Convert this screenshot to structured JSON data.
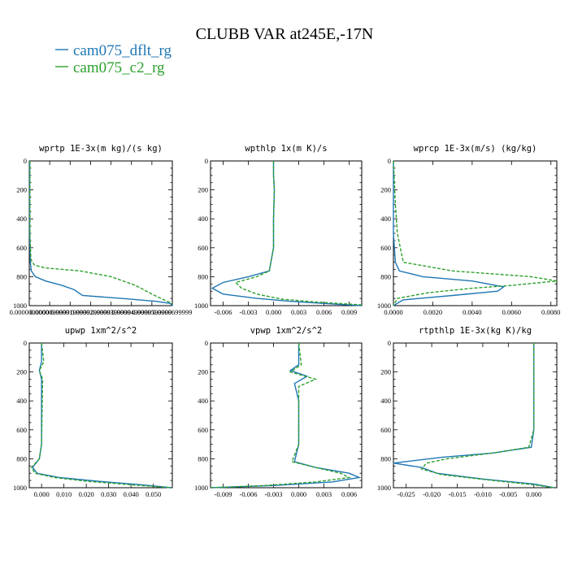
{
  "title": "CLUBB VAR at245E,-17N",
  "legend": [
    {
      "label": "cam075_dflt_rg",
      "color": "#1f77b4",
      "style": "solid"
    },
    {
      "label": "cam075_c2_rg",
      "color": "#2ca02c",
      "style": "dashed"
    }
  ],
  "chart_data": [
    {
      "type": "line",
      "title": "wprtp  1E-3x(m kg)/(s kg)",
      "ylim": [
        1000,
        0
      ],
      "yticks": [
        0,
        200,
        400,
        600,
        800,
        1000
      ],
      "xlim": [
        0,
        7e-05
      ],
      "xtick_labels": [
        "0.0000000000",
        "0.0000099999",
        "0.0000199999",
        "0.0000299999",
        "0.0000399999",
        "0.0000499999",
        "0.0000599999",
        "0.0000699999"
      ],
      "xtick_values": [
        0,
        1e-05,
        2e-05,
        3e-05,
        4e-05,
        5e-05,
        6e-05,
        7e-05
      ],
      "series": [
        {
          "name": "cam075_dflt_rg",
          "x": [
            2e-07,
            2e-07,
            5e-07,
            1e-06,
            3e-06,
            8e-06,
            1.6e-05,
            2.2e-05,
            2.6e-05,
            4.5e-05,
            6.2e-05,
            6.9e-05,
            7e-05
          ],
          "y": [
            0,
            500,
            700,
            760,
            800,
            830,
            860,
            890,
            930,
            950,
            970,
            985,
            1000
          ]
        },
        {
          "name": "cam075_c2_rg",
          "x": [
            3e-07,
            3e-07,
            8e-07,
            2.5e-06,
            8e-06,
            2.5e-05,
            4e-05,
            5.2e-05,
            6e-05,
            6.6e-05,
            7e-05
          ],
          "y": [
            0,
            500,
            680,
            720,
            740,
            760,
            800,
            860,
            920,
            960,
            985
          ]
        }
      ]
    },
    {
      "type": "line",
      "title": "wpthlp  1x(m K)/s",
      "ylim": [
        1000,
        0
      ],
      "yticks": [
        0,
        200,
        400,
        600,
        800,
        1000
      ],
      "xlim": [
        -0.0075,
        0.0105
      ],
      "xtick_labels": [
        "-0.006",
        "-0.003",
        "0.000",
        "0.003",
        "0.006",
        "0.009"
      ],
      "xtick_values": [
        -0.006,
        -0.003,
        0,
        0.003,
        0.006,
        0.009
      ],
      "series": [
        {
          "name": "cam075_dflt_rg",
          "x": [
            0,
            0,
            0.0001,
            0,
            0,
            -0.0005,
            -0.003,
            -0.006,
            -0.0073,
            -0.006,
            -0.002,
            0.002,
            0.006,
            0.0105
          ],
          "y": [
            0,
            100,
            200,
            400,
            600,
            760,
            800,
            840,
            880,
            920,
            950,
            970,
            985,
            1000
          ]
        },
        {
          "name": "cam075_c2_rg",
          "x": [
            0,
            0,
            0.0001,
            0,
            0,
            -0.0005,
            -0.002,
            -0.0045,
            -0.0038,
            -0.002,
            0.001,
            0.005,
            0.0105
          ],
          "y": [
            0,
            100,
            200,
            400,
            600,
            760,
            800,
            840,
            880,
            920,
            955,
            975,
            995
          ]
        }
      ]
    },
    {
      "type": "line",
      "title": "wprcp  1E-3x(m/s) (kg/kg)",
      "ylim": [
        1000,
        0
      ],
      "yticks": [
        0,
        200,
        400,
        600,
        800,
        1000
      ],
      "xlim": [
        0,
        0.0083
      ],
      "xtick_labels": [
        "0.0000",
        "0.0020",
        "0.0040",
        "0.0060",
        "0.0080"
      ],
      "xtick_values": [
        0,
        0.002,
        0.004,
        0.006,
        0.008
      ],
      "series": [
        {
          "name": "cam075_dflt_rg",
          "x": [
            0,
            0,
            0.0001,
            0.0003,
            0.0015,
            0.004,
            0.0056,
            0.0053,
            0.003,
            0.0005,
            0
          ],
          "y": [
            0,
            500,
            700,
            760,
            800,
            830,
            870,
            900,
            930,
            960,
            1000
          ]
        },
        {
          "name": "cam075_c2_rg",
          "x": [
            0,
            0.0001,
            0.0002,
            0.0005,
            0.003,
            0.007,
            0.0083,
            0.006,
            0.004,
            0.0018,
            0.0002,
            0
          ],
          "y": [
            0,
            300,
            500,
            700,
            760,
            800,
            830,
            860,
            880,
            910,
            950,
            1000
          ]
        }
      ]
    },
    {
      "type": "line",
      "title": "upwp  1xm^2/s^2",
      "ylim": [
        1000,
        0
      ],
      "yticks": [
        0,
        200,
        400,
        600,
        800,
        1000
      ],
      "xlim": [
        -0.0055,
        0.0585
      ],
      "xtick_labels": [
        "0.000",
        "0.010",
        "0.020",
        "0.030",
        "0.040",
        "0.050"
      ],
      "xtick_values": [
        0,
        0.01,
        0.02,
        0.03,
        0.04,
        0.05
      ],
      "series": [
        {
          "name": "cam075_dflt_rg",
          "x": [
            0,
            0,
            -0.001,
            0,
            0,
            -0.001,
            -0.004,
            -0.002,
            0.008,
            0.025,
            0.045,
            0.058
          ],
          "y": [
            0,
            130,
            190,
            250,
            700,
            800,
            860,
            900,
            930,
            955,
            980,
            1000
          ]
        },
        {
          "name": "cam075_c2_rg",
          "x": [
            0,
            0.001,
            -0.001,
            0.0005,
            0,
            -0.001,
            -0.0045,
            -0.003,
            0.006,
            0.02,
            0.04,
            0.058
          ],
          "y": [
            0,
            130,
            190,
            250,
            700,
            800,
            860,
            900,
            930,
            955,
            980,
            1000
          ]
        }
      ]
    },
    {
      "type": "line",
      "title": "vpwp  1xm^2/s^2",
      "ylim": [
        1000,
        0
      ],
      "yticks": [
        0,
        200,
        400,
        600,
        800,
        1000
      ],
      "xlim": [
        -0.0105,
        0.0075
      ],
      "xtick_labels": [
        "-0.009",
        "-0.006",
        "-0.003",
        "0.000",
        "0.003",
        "0.006"
      ],
      "xtick_values": [
        -0.009,
        -0.006,
        -0.003,
        0,
        0.003,
        0.006
      ],
      "series": [
        {
          "name": "cam075_dflt_rg",
          "x": [
            0,
            0,
            -0.001,
            0.001,
            -0.0005,
            0,
            0,
            -0.0005,
            0.002,
            0.006,
            0.0072,
            0.004,
            -0.003,
            -0.0105
          ],
          "y": [
            0,
            150,
            190,
            230,
            280,
            400,
            700,
            820,
            860,
            900,
            930,
            960,
            985,
            1000
          ]
        },
        {
          "name": "cam075_c2_rg",
          "x": [
            0,
            0.0003,
            -0.001,
            0.002,
            0,
            0,
            -0.0008,
            0.002,
            0.005,
            0.006,
            0.002,
            -0.004,
            -0.0105
          ],
          "y": [
            0,
            150,
            200,
            250,
            300,
            700,
            820,
            860,
            900,
            930,
            960,
            985,
            1000
          ]
        }
      ]
    },
    {
      "type": "line",
      "title": "rtpthlp  1E-3x(kg K)/kg",
      "ylim": [
        1000,
        0
      ],
      "yticks": [
        0,
        200,
        400,
        600,
        800,
        1000
      ],
      "xlim": [
        -0.0275,
        0.0045
      ],
      "xtick_labels": [
        "-0.025",
        "-0.020",
        "-0.015",
        "-0.010",
        "-0.005",
        "0.000"
      ],
      "xtick_values": [
        -0.025,
        -0.02,
        -0.015,
        -0.01,
        -0.005,
        0
      ],
      "series": [
        {
          "name": "cam075_dflt_rg",
          "x": [
            0,
            0,
            -0.0005,
            -0.008,
            -0.018,
            -0.0275,
            -0.022,
            -0.019,
            -0.01,
            0,
            0.004
          ],
          "y": [
            0,
            600,
            720,
            760,
            790,
            830,
            860,
            900,
            940,
            975,
            1000
          ]
        },
        {
          "name": "cam075_c2_rg",
          "x": [
            0,
            0,
            -0.001,
            -0.008,
            -0.017,
            -0.021,
            -0.022,
            -0.018,
            -0.008,
            0,
            0.004
          ],
          "y": [
            0,
            600,
            720,
            760,
            800,
            830,
            870,
            910,
            950,
            980,
            1000
          ]
        }
      ]
    }
  ]
}
